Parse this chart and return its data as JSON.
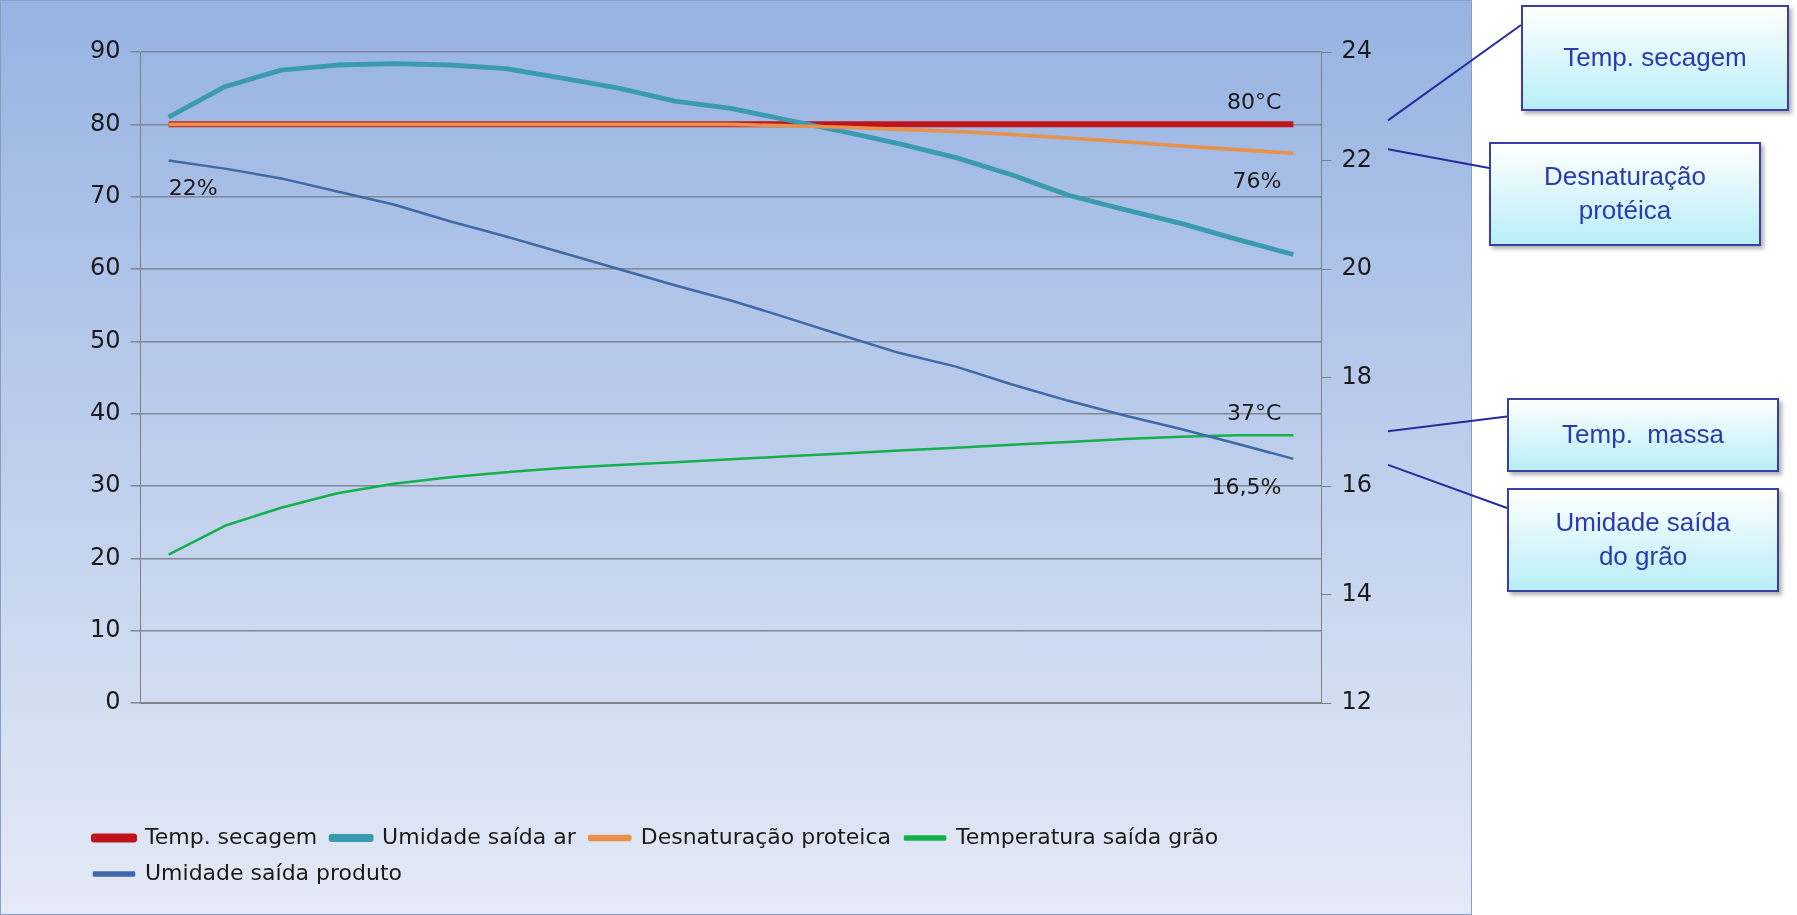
{
  "chart_data": {
    "type": "line",
    "categories": [
      null,
      null,
      null,
      null,
      null,
      null,
      null,
      null,
      null,
      null,
      null,
      null,
      null,
      null,
      null,
      null,
      null,
      null,
      null,
      null,
      null
    ],
    "ylim": [
      0,
      90
    ],
    "yticks": [
      0,
      10,
      20,
      30,
      40,
      50,
      60,
      70,
      80,
      90
    ],
    "y2lim": [
      12,
      24
    ],
    "y2ticks": [
      12,
      14,
      16,
      18,
      20,
      22,
      24
    ],
    "grid": "y",
    "legend": "bottom",
    "marker": "none",
    "line_style": "solid",
    "series": [
      {
        "name": "Temp. secagem",
        "color": "#c0141c",
        "values": [
          80,
          80,
          80,
          80,
          80,
          80,
          80,
          80,
          80,
          80,
          80,
          80,
          80,
          80,
          80,
          80,
          80,
          80,
          80,
          80,
          80
        ],
        "value_labels": [
          null,
          null,
          null,
          null,
          null,
          null,
          null,
          null,
          null,
          null,
          null,
          null,
          null,
          null,
          null,
          null,
          null,
          null,
          null,
          null,
          "80°C"
        ]
      },
      {
        "name": "Umidade saída ar",
        "color": "#3a9bb0",
        "values": [
          81,
          85.2,
          87.5,
          88.2,
          88.4,
          88.2,
          87.7,
          86.4,
          85,
          83.2,
          82.2,
          80.6,
          79,
          77.3,
          75.4,
          73,
          70.2,
          68.2,
          66.3,
          64.1,
          62
        ]
      },
      {
        "name": "Desnaturação proteica",
        "color": "#e8914a",
        "values": [
          80,
          80,
          80,
          80,
          80,
          80,
          80,
          80,
          80,
          80,
          80,
          79.8,
          79.6,
          79.3,
          79,
          78.6,
          78.1,
          77.6,
          77,
          76.5,
          76
        ],
        "value_labels": [
          null,
          null,
          null,
          null,
          null,
          null,
          null,
          null,
          null,
          null,
          null,
          null,
          null,
          null,
          null,
          null,
          null,
          null,
          null,
          null,
          "76%"
        ]
      },
      {
        "name": "Temperatura saída grão",
        "color": "#13b04c",
        "values": [
          20.5,
          24.5,
          27,
          29,
          30.3,
          31.2,
          31.9,
          32.5,
          32.9,
          33.3,
          33.7,
          34.1,
          34.5,
          34.9,
          35.3,
          35.7,
          36.1,
          36.5,
          36.8,
          37,
          37
        ],
        "value_labels": [
          null,
          null,
          null,
          null,
          null,
          null,
          null,
          null,
          null,
          null,
          null,
          null,
          null,
          null,
          null,
          null,
          null,
          null,
          null,
          null,
          "37°C"
        ]
      },
      {
        "name": "Umidade saída produto",
        "color": "#3f6aa6",
        "axis": "y2",
        "values": [
          22,
          21.85,
          21.67,
          21.43,
          21.19,
          20.88,
          20.6,
          20.3,
          20,
          19.7,
          19.42,
          19.1,
          18.77,
          18.45,
          18.2,
          17.87,
          17.57,
          17.3,
          17.05,
          16.78,
          16.5
        ],
        "value_labels": [
          "22%",
          null,
          null,
          null,
          null,
          null,
          null,
          null,
          null,
          null,
          null,
          null,
          null,
          null,
          null,
          null,
          null,
          null,
          null,
          null,
          "16,5%"
        ]
      }
    ],
    "annotations": [
      "Temp. secagem",
      "Desnaturação protéica",
      "Temp.  massa",
      "Umidade saída do grão"
    ]
  }
}
